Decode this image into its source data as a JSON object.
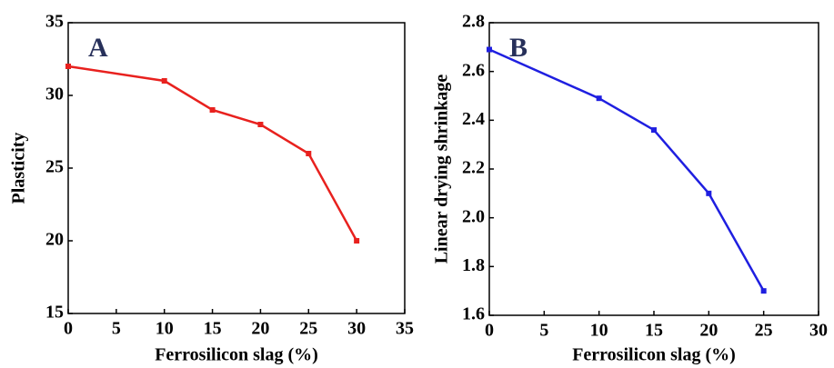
{
  "chart_data": [
    {
      "type": "line",
      "annotation": "A",
      "xlabel": "Ferrosilicon slag (%)",
      "ylabel": "Plasticity",
      "x": [
        0,
        10,
        15,
        20,
        25,
        30
      ],
      "values": [
        32,
        31,
        29,
        28,
        26,
        20
      ],
      "color": "#e8211e",
      "xlim": [
        0,
        35
      ],
      "xticks": [
        0,
        5,
        10,
        15,
        20,
        25,
        30,
        35
      ],
      "ylim": [
        15,
        35
      ],
      "yticks": [
        15,
        20,
        25,
        30,
        35
      ]
    },
    {
      "type": "line",
      "annotation": "B",
      "xlabel": "Ferrosilicon slag (%)",
      "ylabel": "Linear drying shrinkage",
      "x": [
        0,
        10,
        15,
        20,
        25
      ],
      "values": [
        2.69,
        2.49,
        2.36,
        2.1,
        1.7
      ],
      "color": "#1f1fe0",
      "xlim": [
        0,
        30
      ],
      "xticks": [
        0,
        5,
        10,
        15,
        20,
        25,
        30
      ],
      "ylim": [
        1.6,
        2.8
      ],
      "yticks": [
        1.6,
        1.8,
        {
          "value": 2,
          "label": "2.0"
        },
        2.2,
        2.4,
        2.6,
        2.8
      ]
    }
  ]
}
